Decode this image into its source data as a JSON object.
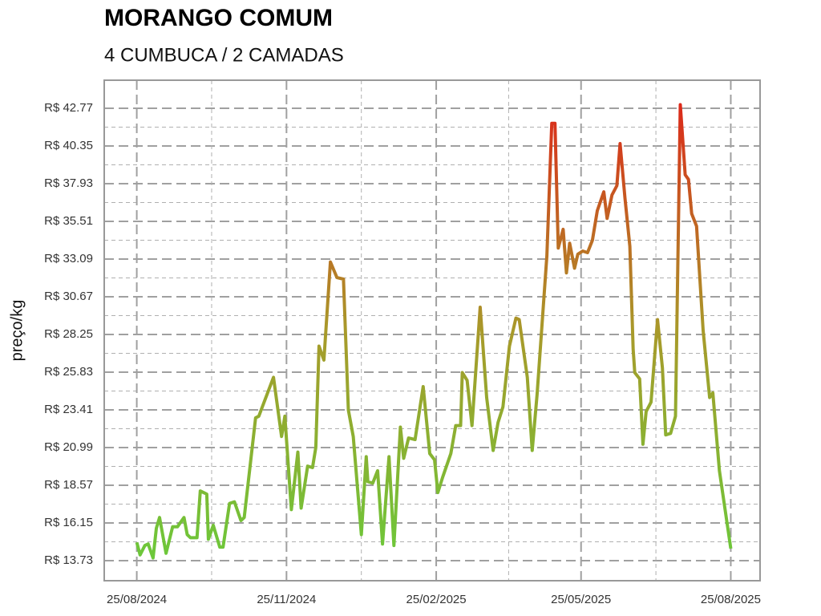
{
  "chart_data": {
    "type": "line",
    "title": "MORANGO COMUM",
    "subtitle": "4 CUMBUCA / 2 CAMADAS",
    "y_label": "preço/kg",
    "x": [
      "2024-08-25",
      "2024-08-27",
      "2024-08-30",
      "2024-09-01",
      "2024-09-04",
      "2024-09-06",
      "2024-09-08",
      "2024-09-12",
      "2024-09-16",
      "2024-09-19",
      "2024-09-23",
      "2024-09-25",
      "2024-09-27",
      "2024-10-01",
      "2024-10-03",
      "2024-10-07",
      "2024-10-08",
      "2024-10-11",
      "2024-10-15",
      "2024-10-17",
      "2024-10-21",
      "2024-10-24",
      "2024-10-28",
      "2024-10-30",
      "2024-11-06",
      "2024-11-08",
      "2024-11-17",
      "2024-11-22",
      "2024-11-24",
      "2024-11-28",
      "2024-12-02",
      "2024-12-04",
      "2024-12-08",
      "2024-12-11",
      "2024-12-13",
      "2024-12-15",
      "2024-12-18",
      "2024-12-22",
      "2024-12-26",
      "2024-12-30",
      "2025-01-02",
      "2025-01-05",
      "2025-01-10",
      "2025-01-13",
      "2025-01-14",
      "2025-01-17",
      "2025-01-20",
      "2025-01-23",
      "2025-01-27",
      "2025-01-30",
      "2025-02-03",
      "2025-02-05",
      "2025-02-08",
      "2025-02-12",
      "2025-02-17",
      "2025-02-21",
      "2025-02-24",
      "2025-02-26",
      "2025-03-01",
      "2025-03-06",
      "2025-03-09",
      "2025-03-12",
      "2025-03-13",
      "2025-03-16",
      "2025-03-19",
      "2025-03-24",
      "2025-03-28",
      "2025-04-01",
      "2025-04-04",
      "2025-04-07",
      "2025-04-11",
      "2025-04-15",
      "2025-04-17",
      "2025-04-22",
      "2025-04-25",
      "2025-04-28",
      "2025-05-04",
      "2025-05-07",
      "2025-05-09",
      "2025-05-11",
      "2025-05-14",
      "2025-05-16",
      "2025-05-18",
      "2025-05-21",
      "2025-05-23",
      "2025-05-26",
      "2025-05-29",
      "2025-06-01",
      "2025-06-04",
      "2025-06-08",
      "2025-06-10",
      "2025-06-13",
      "2025-06-16",
      "2025-06-18",
      "2025-06-21",
      "2025-06-24",
      "2025-06-26",
      "2025-06-27",
      "2025-06-30",
      "2025-07-02",
      "2025-07-04",
      "2025-07-07",
      "2025-07-11",
      "2025-07-14",
      "2025-07-16",
      "2025-07-19",
      "2025-07-22",
      "2025-07-25",
      "2025-07-28",
      "2025-07-30",
      "2025-08-01",
      "2025-08-04",
      "2025-08-08",
      "2025-08-12",
      "2025-08-14",
      "2025-08-18",
      "2025-08-25"
    ],
    "values": [
      14.9,
      14.1,
      14.7,
      14.8,
      13.9,
      15.8,
      16.5,
      14.2,
      15.9,
      15.9,
      16.5,
      15.4,
      15.2,
      15.2,
      18.2,
      18.0,
      15.1,
      16.0,
      14.6,
      14.6,
      17.4,
      17.5,
      16.3,
      16.5,
      22.9,
      23.0,
      25.5,
      21.7,
      23.0,
      17.0,
      20.7,
      17.1,
      19.8,
      19.7,
      21.0,
      27.5,
      26.6,
      32.9,
      31.9,
      31.8,
      23.4,
      21.7,
      15.4,
      20.4,
      18.8,
      18.7,
      19.5,
      14.8,
      20.4,
      14.7,
      22.3,
      20.3,
      21.6,
      21.5,
      24.9,
      20.6,
      20.2,
      18.1,
      19.1,
      20.6,
      22.4,
      22.4,
      25.8,
      25.3,
      22.4,
      30.0,
      24.2,
      20.8,
      22.6,
      23.6,
      27.5,
      29.3,
      29.2,
      25.5,
      20.8,
      24.4,
      33.3,
      41.8,
      41.8,
      33.8,
      35.0,
      32.2,
      34.1,
      32.5,
      33.4,
      33.6,
      33.5,
      34.3,
      36.2,
      37.4,
      35.7,
      37.2,
      37.8,
      40.5,
      37.0,
      33.9,
      27.3,
      25.8,
      25.4,
      21.2,
      23.3,
      23.9,
      29.2,
      26.1,
      21.8,
      21.9,
      23.0,
      43.0,
      38.5,
      38.2,
      36.0,
      35.2,
      28.5,
      24.2,
      24.5,
      19.5,
      14.5
    ],
    "colors": [
      "#6cc83a",
      "#dc2a1a"
    ],
    "xlim": [
      "2024-08-05",
      "2025-09-12"
    ],
    "xticks": [
      {
        "value": "2024-08-25",
        "label": "25/08/2024"
      },
      {
        "value": "2024-11-25",
        "label": "25/11/2024"
      },
      {
        "value": "2025-02-25",
        "label": "25/02/2025"
      },
      {
        "value": "2025-05-25",
        "label": "25/05/2025"
      },
      {
        "value": "2025-08-25",
        "label": "25/08/2025"
      }
    ],
    "ylim": [
      12.44,
      44.57
    ],
    "yticks": [
      {
        "value": 13.73,
        "label": "R$ 13.73"
      },
      {
        "value": 16.15,
        "label": "R$ 16.15"
      },
      {
        "value": 18.57,
        "label": "R$ 18.57"
      },
      {
        "value": 20.99,
        "label": "R$ 20.99"
      },
      {
        "value": 23.41,
        "label": "R$ 23.41"
      },
      {
        "value": 25.83,
        "label": "R$ 25.83"
      },
      {
        "value": 28.25,
        "label": "R$ 28.25"
      },
      {
        "value": 30.67,
        "label": "R$ 30.67"
      },
      {
        "value": 33.09,
        "label": "R$ 33.09"
      },
      {
        "value": 35.51,
        "label": "R$ 35.51"
      },
      {
        "value": 37.93,
        "label": "R$ 37.93"
      },
      {
        "value": 40.35,
        "label": "R$ 40.35"
      },
      {
        "value": 42.77,
        "label": "R$ 42.77"
      }
    ],
    "grid": true
  }
}
